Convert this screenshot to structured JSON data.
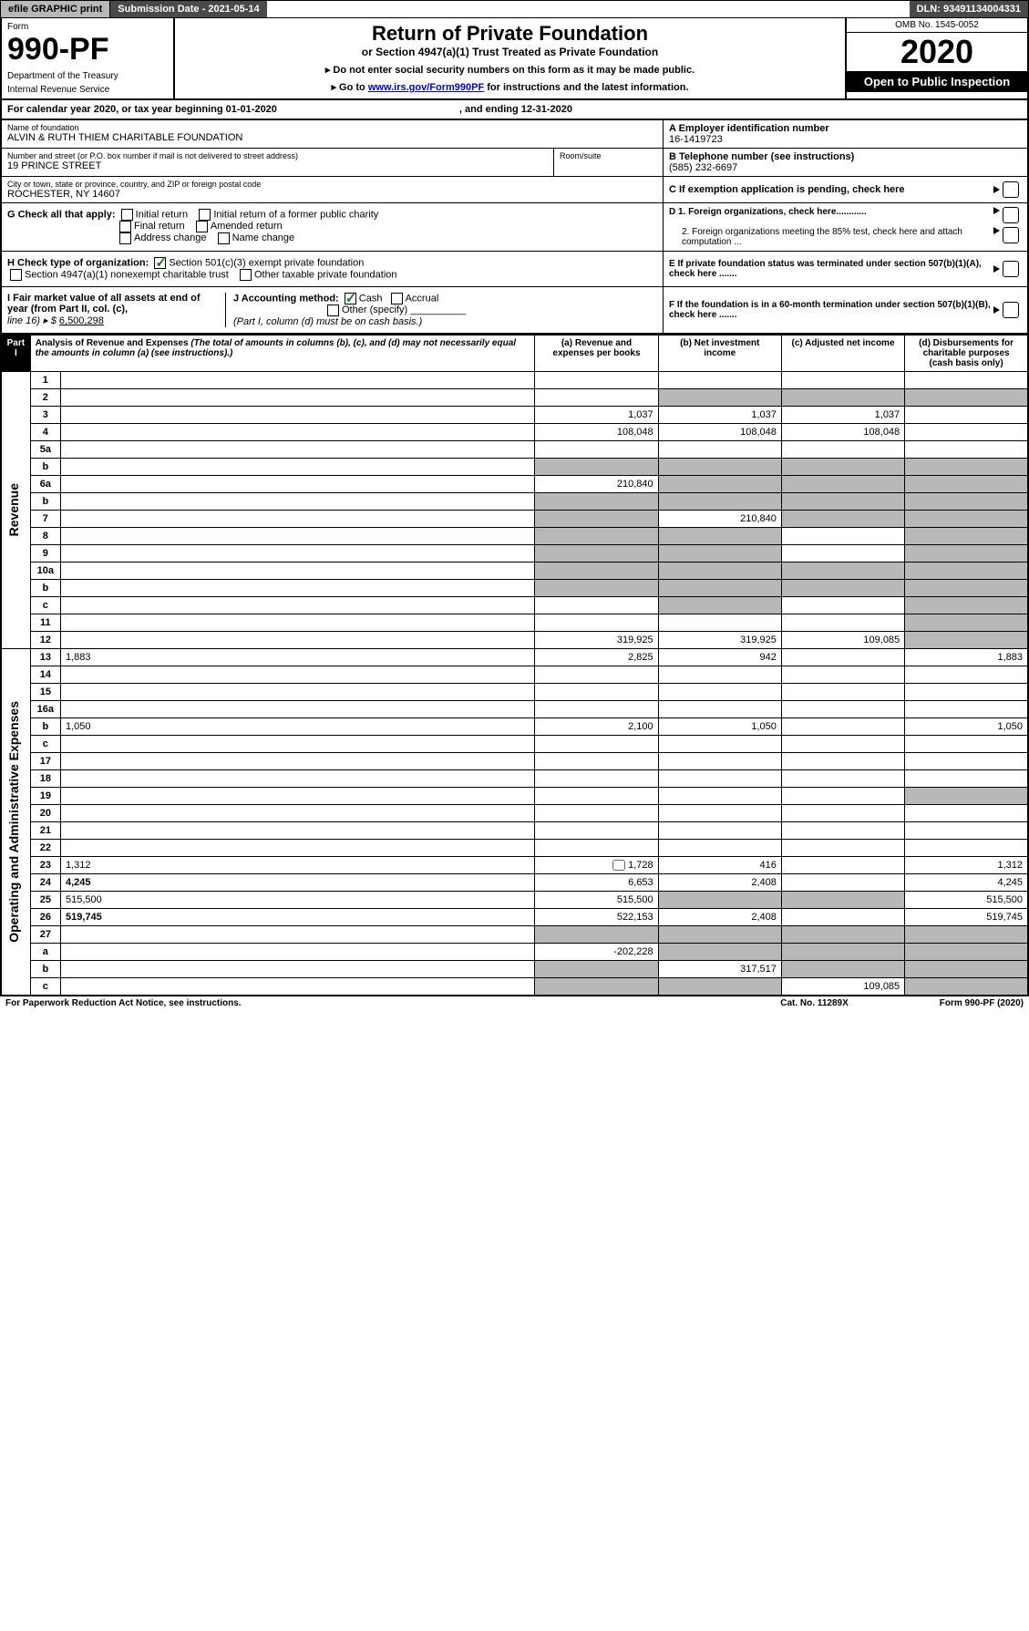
{
  "topbar": {
    "efile": "efile GRAPHIC print",
    "subdate_lbl": "Submission Date - ",
    "subdate": "2021-05-14",
    "dln_lbl": "DLN: ",
    "dln": "93491134004331"
  },
  "header": {
    "form_lbl": "Form",
    "form_num": "990-PF",
    "dept": "Department of the Treasury",
    "irs": "Internal Revenue Service",
    "title": "Return of Private Foundation",
    "subtitle": "or Section 4947(a)(1) Trust Treated as Private Foundation",
    "instr1": "▸ Do not enter social security numbers on this form as it may be made public.",
    "instr2": "▸ Go to ",
    "instr_link": "www.irs.gov/Form990PF",
    "instr3": " for instructions and the latest information.",
    "omb": "OMB No. 1545-0052",
    "year": "2020",
    "open": "Open to Public Inspection"
  },
  "calyear": {
    "p1": "For calendar year 2020, or tax year beginning 01-01-2020",
    "p2": ", and ending 12-31-2020"
  },
  "block_a": {
    "name_lbl": "Name of foundation",
    "name": "ALVIN & RUTH THIEM CHARITABLE FOUNDATION",
    "ein_lbl": "A Employer identification number",
    "ein": "16-1419723"
  },
  "block_b": {
    "addr_lbl": "Number and street (or P.O. box number if mail is not delivered to street address)",
    "addr": "19 PRINCE STREET",
    "room_lbl": "Room/suite",
    "tel_lbl": "B Telephone number (see instructions)",
    "tel": "(585) 232-6697"
  },
  "block_c": {
    "city_lbl": "City or town, state or province, country, and ZIP or foreign postal code",
    "city": "ROCHESTER, NY  14607",
    "c_lbl": "C If exemption application is pending, check here"
  },
  "block_g": {
    "lbl": "G Check all that apply:",
    "o1": "Initial return",
    "o2": "Initial return of a former public charity",
    "o3": "Final return",
    "o4": "Amended return",
    "o5": "Address change",
    "o6": "Name change"
  },
  "block_d": {
    "d1": "D 1. Foreign organizations, check here............",
    "d2": "2. Foreign organizations meeting the 85% test, check here and attach computation ..."
  },
  "block_h": {
    "lbl": "H Check type of organization:",
    "o1": "Section 501(c)(3) exempt private foundation",
    "o2": "Section 4947(a)(1) nonexempt charitable trust",
    "o3": "Other taxable private foundation"
  },
  "block_e": {
    "lbl": "E  If private foundation status was terminated under section 507(b)(1)(A), check here ......."
  },
  "block_i": {
    "lbl": "I Fair market value of all assets at end of year (from Part II, col. (c),",
    "line": "line 16) ▸ $ ",
    "val": "6,500,298"
  },
  "block_j": {
    "lbl": "J Accounting method:",
    "o1": "Cash",
    "o2": "Accrual",
    "o3": "Other (specify)",
    "note": "(Part I, column (d) must be on cash basis.)"
  },
  "block_f": {
    "lbl": "F  If the foundation is in a 60-month termination under section 507(b)(1)(B), check here ......."
  },
  "part1": {
    "tab": "Part I",
    "title": "Analysis of Revenue and Expenses ",
    "note": "(The total of amounts in columns (b), (c), and (d) may not necessarily equal the amounts in column (a) (see instructions).)",
    "col_a": "(a)   Revenue and expenses per books",
    "col_b": "(b)  Net investment income",
    "col_c": "(c)  Adjusted net income",
    "col_d": "(d)  Disbursements for charitable purposes (cash basis only)"
  },
  "side": {
    "rev": "Revenue",
    "exp": "Operating and Administrative Expenses"
  },
  "rows": [
    {
      "n": "1",
      "d": "",
      "a": "",
      "b": "",
      "c": ""
    },
    {
      "n": "2",
      "d": "",
      "a": "",
      "b": "",
      "c": "",
      "grey_bcd": true
    },
    {
      "n": "3",
      "d": "",
      "a": "1,037",
      "b": "1,037",
      "c": "1,037"
    },
    {
      "n": "4",
      "d": "",
      "a": "108,048",
      "b": "108,048",
      "c": "108,048"
    },
    {
      "n": "5a",
      "d": "",
      "a": "",
      "b": "",
      "c": ""
    },
    {
      "n": "b",
      "d": "",
      "a": "",
      "b": "",
      "c": "",
      "grey_all": true
    },
    {
      "n": "6a",
      "d": "",
      "a": "210,840",
      "b": "",
      "c": "",
      "grey_bcd": true
    },
    {
      "n": "b",
      "d": "",
      "a": "",
      "b": "",
      "c": "",
      "grey_all": true
    },
    {
      "n": "7",
      "d": "",
      "a": "",
      "b": "210,840",
      "c": "",
      "grey_a": true,
      "grey_cd": true
    },
    {
      "n": "8",
      "d": "",
      "a": "",
      "b": "",
      "c": "",
      "grey_ab": true,
      "grey_d": true
    },
    {
      "n": "9",
      "d": "",
      "a": "",
      "b": "",
      "c": "",
      "grey_ab": true,
      "grey_d": true
    },
    {
      "n": "10a",
      "d": "",
      "a": "",
      "b": "",
      "c": "",
      "grey_all": true
    },
    {
      "n": "b",
      "d": "",
      "a": "",
      "b": "",
      "c": "",
      "grey_all": true
    },
    {
      "n": "c",
      "d": "",
      "a": "",
      "b": "",
      "c": "",
      "grey_b": true,
      "grey_d": true
    },
    {
      "n": "11",
      "d": "",
      "a": "",
      "b": "",
      "c": "",
      "grey_d": true
    },
    {
      "n": "12",
      "d": "",
      "a": "319,925",
      "b": "319,925",
      "c": "109,085",
      "bold": true,
      "grey_d": true
    }
  ],
  "exp_rows": [
    {
      "n": "13",
      "d": "1,883",
      "a": "2,825",
      "b": "942",
      "c": ""
    },
    {
      "n": "14",
      "d": "",
      "a": "",
      "b": "",
      "c": ""
    },
    {
      "n": "15",
      "d": "",
      "a": "",
      "b": "",
      "c": ""
    },
    {
      "n": "16a",
      "d": "",
      "a": "",
      "b": "",
      "c": ""
    },
    {
      "n": "b",
      "d": "1,050",
      "a": "2,100",
      "b": "1,050",
      "c": ""
    },
    {
      "n": "c",
      "d": "",
      "a": "",
      "b": "",
      "c": ""
    },
    {
      "n": "17",
      "d": "",
      "a": "",
      "b": "",
      "c": ""
    },
    {
      "n": "18",
      "d": "",
      "a": "",
      "b": "",
      "c": ""
    },
    {
      "n": "19",
      "d": "",
      "a": "",
      "b": "",
      "c": "",
      "grey_d": true
    },
    {
      "n": "20",
      "d": "",
      "a": "",
      "b": "",
      "c": ""
    },
    {
      "n": "21",
      "d": "",
      "a": "",
      "b": "",
      "c": ""
    },
    {
      "n": "22",
      "d": "",
      "a": "",
      "b": "",
      "c": ""
    },
    {
      "n": "23",
      "d": "1,312",
      "a": "1,728",
      "b": "416",
      "c": "",
      "attach": true
    },
    {
      "n": "24",
      "d": "4,245",
      "a": "6,653",
      "b": "2,408",
      "c": "",
      "bold": true
    },
    {
      "n": "25",
      "d": "515,500",
      "a": "515,500",
      "b": "",
      "c": "",
      "grey_bc": true
    },
    {
      "n": "26",
      "d": "519,745",
      "a": "522,153",
      "b": "2,408",
      "c": "",
      "bold": true
    },
    {
      "n": "27",
      "d": "",
      "a": "",
      "b": "",
      "c": "",
      "grey_all": true
    },
    {
      "n": "a",
      "d": "",
      "a": "-202,228",
      "b": "",
      "c": "",
      "bold": true,
      "grey_bcd": true
    },
    {
      "n": "b",
      "d": "",
      "a": "",
      "b": "317,517",
      "c": "",
      "bold": true,
      "grey_a": true,
      "grey_cd": true
    },
    {
      "n": "c",
      "d": "",
      "a": "",
      "b": "",
      "c": "109,085",
      "bold": true,
      "grey_ab": true,
      "grey_d": true
    }
  ],
  "footer": {
    "l": "For Paperwork Reduction Act Notice, see instructions.",
    "m": "Cat. No. 11289X",
    "r": "Form 990-PF (2020)"
  }
}
